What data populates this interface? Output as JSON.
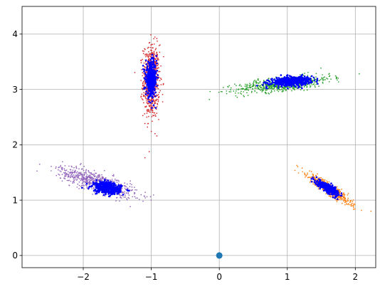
{
  "chart_data": {
    "type": "scatter",
    "title": "",
    "xlabel": "",
    "ylabel": "",
    "xlim": [
      -2.9,
      2.3
    ],
    "ylim": [
      -0.22,
      4.5
    ],
    "grid": true,
    "x_ticks": [
      -2,
      -1,
      0,
      1,
      2
    ],
    "x_tick_labels": [
      "−2",
      "−1",
      "0",
      "1",
      "2"
    ],
    "y_ticks": [
      0,
      1,
      2,
      3,
      4
    ],
    "y_tick_labels": [
      "0",
      "1",
      "2",
      "3",
      "4"
    ],
    "series": [
      {
        "role": "cluster-sample",
        "color": "#d62728",
        "center": [
          -1.0,
          3.15
        ],
        "std": [
          0.06,
          0.33
        ],
        "rotation_deg": 0,
        "count": 700
      },
      {
        "role": "cluster-sample",
        "color": "#2ca02c",
        "center": [
          0.95,
          3.1
        ],
        "std": [
          0.35,
          0.06
        ],
        "rotation_deg": 8,
        "count": 700
      },
      {
        "role": "cluster-sample",
        "color": "#9467bd",
        "center": [
          -1.8,
          1.33
        ],
        "std": [
          0.3,
          0.08
        ],
        "rotation_deg": -22,
        "count": 700
      },
      {
        "role": "cluster-sample",
        "color": "#ff7f0e",
        "center": [
          1.62,
          1.2
        ],
        "std": [
          0.2,
          0.04
        ],
        "rotation_deg": -40,
        "count": 600
      },
      {
        "role": "cluster-core",
        "color": "#0000ff",
        "center": [
          -1.0,
          3.18
        ],
        "std": [
          0.04,
          0.15
        ],
        "rotation_deg": 0,
        "count": 450
      },
      {
        "role": "cluster-core",
        "color": "#0000ff",
        "center": [
          1.05,
          3.15
        ],
        "std": [
          0.15,
          0.04
        ],
        "rotation_deg": 5,
        "count": 450
      },
      {
        "role": "cluster-core",
        "color": "#0000ff",
        "center": [
          -1.65,
          1.22
        ],
        "std": [
          0.1,
          0.05
        ],
        "rotation_deg": -12,
        "count": 450
      },
      {
        "role": "cluster-core",
        "color": "#0000ff",
        "center": [
          1.6,
          1.22
        ],
        "std": [
          0.1,
          0.03
        ],
        "rotation_deg": -38,
        "count": 400
      }
    ],
    "marker": {
      "x": 0,
      "y": 0,
      "color": "#1f77b4"
    }
  }
}
